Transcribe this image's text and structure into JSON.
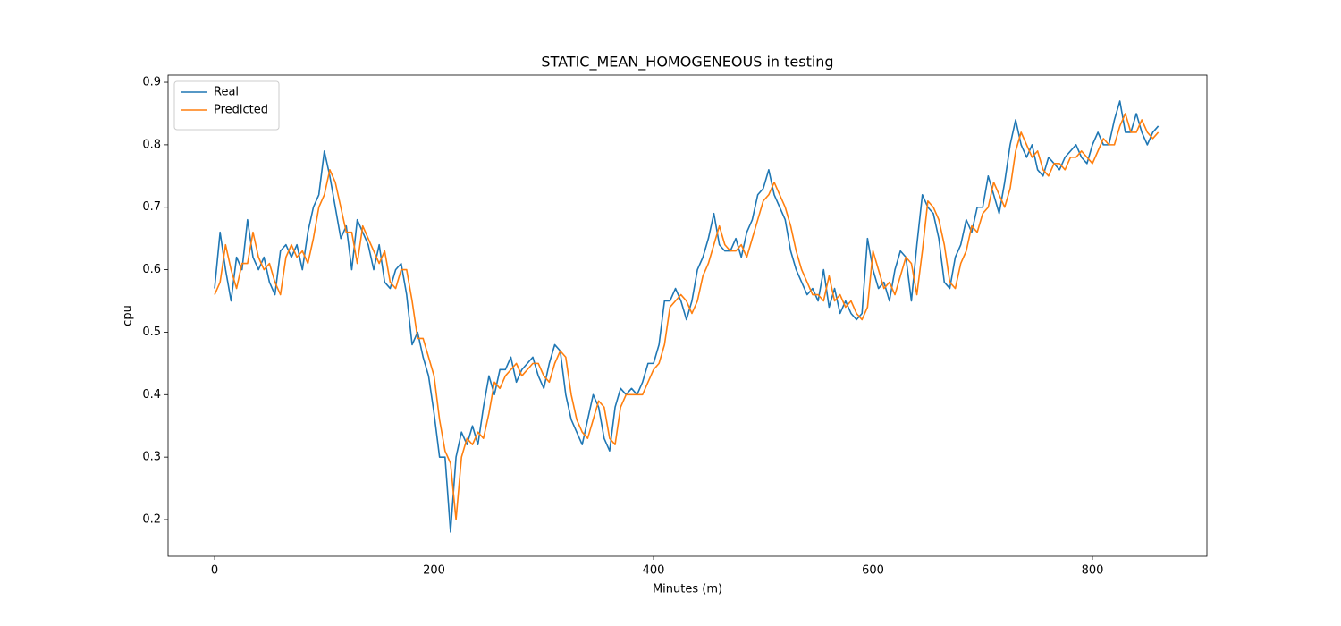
{
  "chart_data": {
    "type": "line",
    "title": "STATIC_MEAN_HOMOGENEOUS in testing",
    "x_label": "Minutes (m)",
    "y_label": "cpu",
    "x": [
      0,
      5,
      10,
      15,
      20,
      25,
      30,
      35,
      40,
      45,
      50,
      55,
      60,
      65,
      70,
      75,
      80,
      85,
      90,
      95,
      100,
      105,
      110,
      115,
      120,
      125,
      130,
      135,
      140,
      145,
      150,
      155,
      160,
      165,
      170,
      175,
      180,
      185,
      190,
      195,
      200,
      205,
      210,
      215,
      220,
      225,
      230,
      235,
      240,
      245,
      250,
      255,
      260,
      265,
      270,
      275,
      280,
      285,
      290,
      295,
      300,
      305,
      310,
      315,
      320,
      325,
      330,
      335,
      340,
      345,
      350,
      355,
      360,
      365,
      370,
      375,
      380,
      385,
      390,
      395,
      400,
      405,
      410,
      415,
      420,
      425,
      430,
      435,
      440,
      445,
      450,
      455,
      460,
      465,
      470,
      475,
      480,
      485,
      490,
      495,
      500,
      505,
      510,
      515,
      520,
      525,
      530,
      535,
      540,
      545,
      550,
      555,
      560,
      565,
      570,
      575,
      580,
      585,
      590,
      595,
      600,
      605,
      610,
      615,
      620,
      625,
      630,
      635,
      640,
      645,
      650,
      655,
      660,
      665,
      670,
      675,
      680,
      685,
      690,
      695,
      700,
      705,
      710,
      715,
      720,
      725,
      730,
      735,
      740,
      745,
      750,
      755,
      760,
      765,
      770,
      775,
      780,
      785,
      790,
      795,
      800,
      805,
      810,
      815,
      820,
      825,
      830,
      835,
      840,
      845,
      850,
      855,
      860
    ],
    "series": [
      {
        "name": "Real",
        "color": "#1f77b4",
        "values": [
          0.57,
          0.66,
          0.6,
          0.55,
          0.62,
          0.6,
          0.68,
          0.62,
          0.6,
          0.62,
          0.58,
          0.56,
          0.63,
          0.64,
          0.62,
          0.64,
          0.6,
          0.66,
          0.7,
          0.72,
          0.79,
          0.75,
          0.7,
          0.65,
          0.67,
          0.6,
          0.68,
          0.66,
          0.64,
          0.6,
          0.64,
          0.58,
          0.57,
          0.6,
          0.61,
          0.56,
          0.48,
          0.5,
          0.46,
          0.43,
          0.37,
          0.3,
          0.3,
          0.18,
          0.3,
          0.34,
          0.32,
          0.35,
          0.32,
          0.38,
          0.43,
          0.4,
          0.44,
          0.44,
          0.46,
          0.42,
          0.44,
          0.45,
          0.46,
          0.43,
          0.41,
          0.45,
          0.48,
          0.47,
          0.4,
          0.36,
          0.34,
          0.32,
          0.36,
          0.4,
          0.38,
          0.33,
          0.31,
          0.38,
          0.41,
          0.4,
          0.41,
          0.4,
          0.42,
          0.45,
          0.45,
          0.48,
          0.55,
          0.55,
          0.57,
          0.55,
          0.52,
          0.55,
          0.6,
          0.62,
          0.65,
          0.69,
          0.64,
          0.63,
          0.63,
          0.65,
          0.62,
          0.66,
          0.68,
          0.72,
          0.73,
          0.76,
          0.72,
          0.7,
          0.68,
          0.63,
          0.6,
          0.58,
          0.56,
          0.57,
          0.55,
          0.6,
          0.54,
          0.57,
          0.53,
          0.55,
          0.53,
          0.52,
          0.53,
          0.65,
          0.6,
          0.57,
          0.58,
          0.55,
          0.6,
          0.63,
          0.62,
          0.55,
          0.64,
          0.72,
          0.7,
          0.69,
          0.65,
          0.58,
          0.57,
          0.62,
          0.64,
          0.68,
          0.66,
          0.7,
          0.7,
          0.75,
          0.72,
          0.69,
          0.74,
          0.8,
          0.84,
          0.8,
          0.78,
          0.8,
          0.76,
          0.75,
          0.78,
          0.77,
          0.76,
          0.78,
          0.79,
          0.8,
          0.78,
          0.77,
          0.8,
          0.82,
          0.8,
          0.8,
          0.84,
          0.87,
          0.82,
          0.82,
          0.85,
          0.82,
          0.8,
          0.82,
          0.83
        ]
      },
      {
        "name": "Predicted",
        "color": "#ff7f0e",
        "values": [
          0.56,
          0.58,
          0.64,
          0.6,
          0.57,
          0.61,
          0.61,
          0.66,
          0.62,
          0.6,
          0.61,
          0.58,
          0.56,
          0.62,
          0.64,
          0.62,
          0.63,
          0.61,
          0.65,
          0.7,
          0.72,
          0.76,
          0.74,
          0.7,
          0.66,
          0.66,
          0.61,
          0.67,
          0.65,
          0.63,
          0.61,
          0.63,
          0.58,
          0.57,
          0.6,
          0.6,
          0.55,
          0.49,
          0.49,
          0.46,
          0.43,
          0.36,
          0.31,
          0.29,
          0.2,
          0.3,
          0.33,
          0.32,
          0.34,
          0.33,
          0.37,
          0.42,
          0.41,
          0.43,
          0.44,
          0.45,
          0.43,
          0.44,
          0.45,
          0.45,
          0.43,
          0.42,
          0.45,
          0.47,
          0.46,
          0.4,
          0.36,
          0.34,
          0.33,
          0.36,
          0.39,
          0.38,
          0.33,
          0.32,
          0.38,
          0.4,
          0.4,
          0.4,
          0.4,
          0.42,
          0.44,
          0.45,
          0.48,
          0.54,
          0.55,
          0.56,
          0.55,
          0.53,
          0.55,
          0.59,
          0.61,
          0.64,
          0.67,
          0.64,
          0.63,
          0.63,
          0.64,
          0.62,
          0.65,
          0.68,
          0.71,
          0.72,
          0.74,
          0.72,
          0.7,
          0.67,
          0.63,
          0.6,
          0.58,
          0.56,
          0.56,
          0.55,
          0.59,
          0.55,
          0.56,
          0.54,
          0.55,
          0.53,
          0.52,
          0.54,
          0.63,
          0.6,
          0.57,
          0.58,
          0.56,
          0.59,
          0.62,
          0.61,
          0.56,
          0.63,
          0.71,
          0.7,
          0.68,
          0.64,
          0.58,
          0.57,
          0.61,
          0.63,
          0.67,
          0.66,
          0.69,
          0.7,
          0.74,
          0.72,
          0.7,
          0.73,
          0.79,
          0.82,
          0.8,
          0.78,
          0.79,
          0.76,
          0.75,
          0.77,
          0.77,
          0.76,
          0.78,
          0.78,
          0.79,
          0.78,
          0.77,
          0.79,
          0.81,
          0.8,
          0.8,
          0.83,
          0.85,
          0.82,
          0.82,
          0.84,
          0.82,
          0.81,
          0.82
        ]
      }
    ],
    "xlim": [
      -42.4,
      904.3
    ],
    "ylim": [
      0.1413,
      0.9115
    ],
    "xticks": [
      0,
      200,
      400,
      600,
      800
    ],
    "yticks": [
      0.2,
      0.3,
      0.4,
      0.5,
      0.6,
      0.7,
      0.8,
      0.9
    ],
    "grid": false,
    "legend": "upper left"
  }
}
